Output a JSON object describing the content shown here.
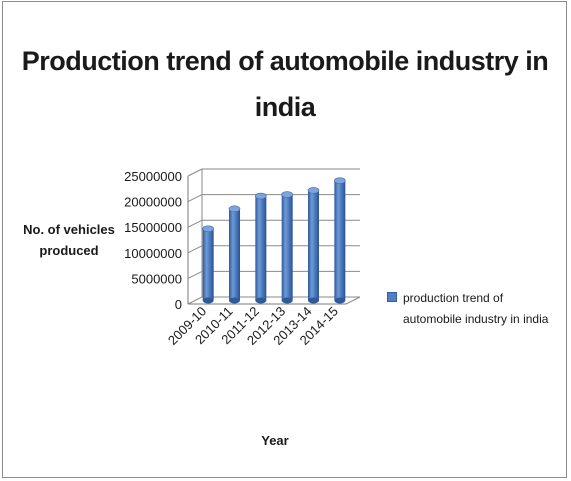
{
  "chart_data": {
    "type": "bar",
    "title": "Production trend of automobile industry in india",
    "xlabel": "Year",
    "ylabel": "No. of vehicles produced",
    "categories": [
      "2009-10",
      "2010-11",
      "2011-12",
      "2012-13",
      "2013-14",
      "2014-15"
    ],
    "series": [
      {
        "name": "production trend of automobile industry in india",
        "values": [
          14000000,
          17900000,
          20400000,
          20700000,
          21500000,
          23400000
        ],
        "color": "#4f7fc4"
      }
    ],
    "yticks": [
      "0",
      "5000000",
      "10000000",
      "15000000",
      "20000000",
      "25000000"
    ],
    "ylim": [
      0,
      25000000
    ],
    "grid": true,
    "legend_position": "right",
    "style": "3d-cylinder"
  }
}
